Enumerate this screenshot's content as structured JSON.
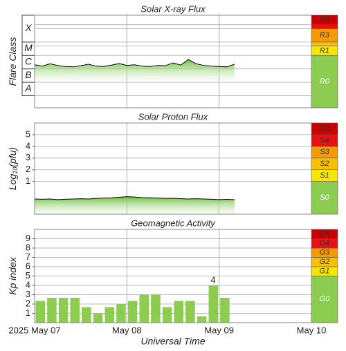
{
  "chart_data": [
    {
      "type": "line",
      "title": "Solar X-ray Flux",
      "ylabel": [
        "Flare Class"
      ],
      "log": true,
      "xlim": [
        "2025-05-07 00:00",
        "2025-05-10 00:00"
      ],
      "ylim": [
        1.25e-09,
        0.01
      ],
      "yticks": [
        {
          "value": 1e-08,
          "label": "A"
        },
        {
          "value": 1e-07,
          "label": "B"
        },
        {
          "value": 1e-06,
          "label": "C"
        },
        {
          "value": 1e-05,
          "label": "M"
        },
        {
          "value": 0.0001,
          "label": "X"
        }
      ],
      "levels": [
        {
          "label": "R0",
          "value": null,
          "color": "#8ccc50"
        },
        {
          "label": "R1",
          "value": 1e-05,
          "color": "#f6e600"
        },
        {
          "value": 5e-05,
          "color": "#f8c000"
        },
        {
          "label": "R3",
          "value": 0.0001,
          "color": "#f59a00"
        },
        {
          "value": 0.001,
          "color": "#e81010"
        },
        {
          "label": "R5",
          "value": 0.002,
          "color": "#c80000"
        }
      ],
      "series": [
        {
          "color": "#000000",
          "x": [
            "2025-05-07 00:00",
            "2025-05-07 02:00",
            "2025-05-07 04:00",
            "2025-05-07 06:00",
            "2025-05-07 08:00",
            "2025-05-07 10:00",
            "2025-05-07 12:00",
            "2025-05-07 14:00",
            "2025-05-07 16:00",
            "2025-05-07 18:00",
            "2025-05-07 20:00",
            "2025-05-07 22:00",
            "2025-05-08 00:00",
            "2025-05-08 02:00",
            "2025-05-08 04:00",
            "2025-05-08 06:00",
            "2025-05-08 08:00",
            "2025-05-08 10:00",
            "2025-05-08 12:00",
            "2025-05-08 14:00",
            "2025-05-08 16:00",
            "2025-05-08 18:00",
            "2025-05-08 20:00",
            "2025-05-08 22:00",
            "2025-05-09 00:00",
            "2025-05-09 02:00",
            "2025-05-09 04:00"
          ],
          "values": [
            2e-06,
            1.6e-06,
            2.4e-06,
            1.8e-06,
            1.5e-06,
            1.4e-06,
            1.7e-06,
            2.2e-06,
            1.6e-06,
            1.5e-06,
            1.9e-06,
            2.5e-06,
            1.8e-06,
            2e-06,
            1.6e-06,
            1.5e-06,
            1.8e-06,
            1.7e-06,
            2.8e-06,
            1.9e-06,
            5e-06,
            2.4e-06,
            1.8e-06,
            1.6e-06,
            1.5e-06,
            1.4e-06,
            2.2e-06
          ]
        }
      ]
    },
    {
      "type": "line",
      "title": "Solar Proton Flux",
      "ylabel": [
        "Log",
        "10",
        "(pfu)"
      ],
      "xlim": [
        "2025-05-07 00:00",
        "2025-05-10 00:00"
      ],
      "ylim": [
        -1.8,
        6
      ],
      "yticks": [
        1,
        2,
        3,
        4,
        5
      ],
      "levels": [
        {
          "label": "S0",
          "value": null,
          "color": "#8ccc50"
        },
        {
          "label": "S1",
          "value": 1,
          "color": "#f6e600"
        },
        {
          "label": "S2",
          "value": 2,
          "color": "#f8c000"
        },
        {
          "label": "S3",
          "value": 3,
          "color": "#f59a00"
        },
        {
          "label": "S4",
          "value": 4,
          "color": "#e81010"
        },
        {
          "label": "S5",
          "value": 5,
          "color": "#c80000"
        }
      ],
      "series": [
        {
          "color": "#000000",
          "x": [
            "2025-05-07 00:00",
            "2025-05-07 02:00",
            "2025-05-07 04:00",
            "2025-05-07 06:00",
            "2025-05-07 08:00",
            "2025-05-07 10:00",
            "2025-05-07 12:00",
            "2025-05-07 14:00",
            "2025-05-07 16:00",
            "2025-05-07 18:00",
            "2025-05-07 20:00",
            "2025-05-07 22:00",
            "2025-05-08 00:00",
            "2025-05-08 02:00",
            "2025-05-08 04:00",
            "2025-05-08 06:00",
            "2025-05-08 08:00",
            "2025-05-08 10:00",
            "2025-05-08 12:00",
            "2025-05-08 14:00",
            "2025-05-08 16:00",
            "2025-05-08 18:00",
            "2025-05-08 20:00",
            "2025-05-08 22:00",
            "2025-05-09 00:00",
            "2025-05-09 02:00",
            "2025-05-09 04:00"
          ],
          "values": [
            -0.5,
            -0.52,
            -0.5,
            -0.55,
            -0.52,
            -0.5,
            -0.48,
            -0.5,
            -0.45,
            -0.42,
            -0.4,
            -0.35,
            -0.3,
            -0.33,
            -0.38,
            -0.4,
            -0.42,
            -0.45,
            -0.43,
            -0.47,
            -0.5,
            -0.48,
            -0.5,
            -0.52,
            -0.55,
            -0.53,
            -0.55
          ]
        }
      ]
    },
    {
      "type": "bar",
      "title": "Geomagnetic Activity",
      "ylabel": [
        "Kp index"
      ],
      "xlabel": "Universal Time",
      "xlim": [
        "2025-05-07 00:00",
        "2025-05-10 00:00"
      ],
      "xticks": [
        {
          "value": "2025-05-07 00:00",
          "label": "2025 May 07"
        },
        {
          "value": "2025-05-08 00:00",
          "label": "May 08"
        },
        {
          "value": "2025-05-09 00:00",
          "label": "May 09"
        },
        {
          "value": "2025-05-10 00:00",
          "label": "May 10"
        }
      ],
      "ylim": [
        0,
        10
      ],
      "yticks": [
        1,
        2,
        3,
        4,
        5,
        6,
        7,
        8,
        9
      ],
      "levels": [
        {
          "label": "G0",
          "value": null,
          "color": "#8ccc50"
        },
        {
          "label": "G1",
          "value": 5,
          "color": "#f6e600"
        },
        {
          "label": "G2",
          "value": 6,
          "color": "#f8c000"
        },
        {
          "label": "G3",
          "value": 7,
          "color": "#f59a00"
        },
        {
          "label": "G4",
          "value": 8,
          "color": "#e81010"
        },
        {
          "label": "G5",
          "value": 9,
          "color": "#c80000"
        }
      ],
      "series": [
        {
          "color": "#8ccc50",
          "x": [
            "2025-05-07 00:00",
            "2025-05-07 03:00",
            "2025-05-07 06:00",
            "2025-05-07 09:00",
            "2025-05-07 12:00",
            "2025-05-07 15:00",
            "2025-05-07 18:00",
            "2025-05-07 21:00",
            "2025-05-08 00:00",
            "2025-05-08 03:00",
            "2025-05-08 06:00",
            "2025-05-08 09:00",
            "2025-05-08 12:00",
            "2025-05-08 15:00",
            "2025-05-08 18:00",
            "2025-05-08 21:00",
            "2025-05-09 00:00"
          ],
          "values": [
            2.33,
            2.67,
            2.67,
            2.67,
            1.67,
            1,
            1.67,
            2,
            2.33,
            3,
            3,
            1.67,
            2.33,
            2.33,
            0.67,
            4,
            2.67
          ],
          "value_labels": [
            null,
            null,
            null,
            null,
            null,
            null,
            null,
            null,
            null,
            null,
            null,
            null,
            null,
            null,
            null,
            "4",
            null
          ]
        }
      ]
    }
  ]
}
